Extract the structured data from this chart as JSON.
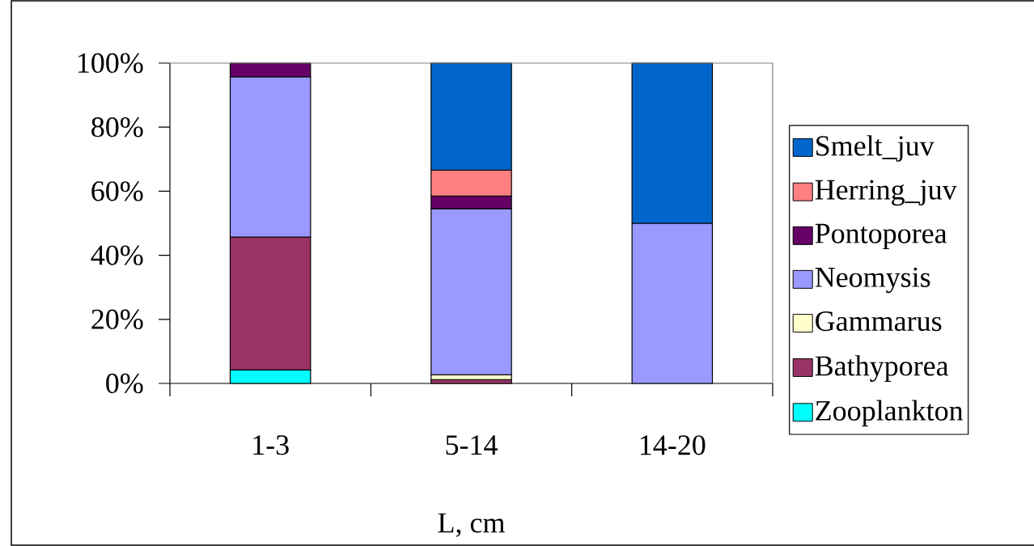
{
  "chart_data": {
    "type": "bar",
    "stacked": true,
    "xlabel": "L, cm",
    "categories": [
      "1-3",
      "5-14",
      "14-20"
    ],
    "series": [
      {
        "name": "Zooplankton",
        "color": "#00ffff",
        "values": [
          4.2,
          null,
          null
        ]
      },
      {
        "name": "Bathyporea",
        "color": "#993366",
        "values": [
          41.5,
          1.2,
          null
        ]
      },
      {
        "name": "Gammarus",
        "color": "#ffffcc",
        "values": [
          null,
          1.5,
          null
        ]
      },
      {
        "name": "Neomysis",
        "color": "#9999ff",
        "values": [
          50.0,
          51.9,
          50.0
        ]
      },
      {
        "name": "Pontoporea",
        "color": "#660066",
        "values": [
          4.3,
          3.9,
          null
        ]
      },
      {
        "name": "Herring_juv",
        "color": "#ff8080",
        "values": [
          null,
          8.1,
          null
        ]
      },
      {
        "name": "Smelt_juv",
        "color": "#0066cc",
        "values": [
          null,
          33.4,
          50.0
        ]
      }
    ],
    "ylim": [
      0,
      100
    ],
    "yticks": [
      {
        "value": 0,
        "label": "0%"
      },
      {
        "value": 20,
        "label": "20%"
      },
      {
        "value": 40,
        "label": "40%"
      },
      {
        "value": 60,
        "label": "60%"
      },
      {
        "value": 80,
        "label": "80%"
      },
      {
        "value": 100,
        "label": "100%"
      }
    ],
    "legend": "right"
  }
}
